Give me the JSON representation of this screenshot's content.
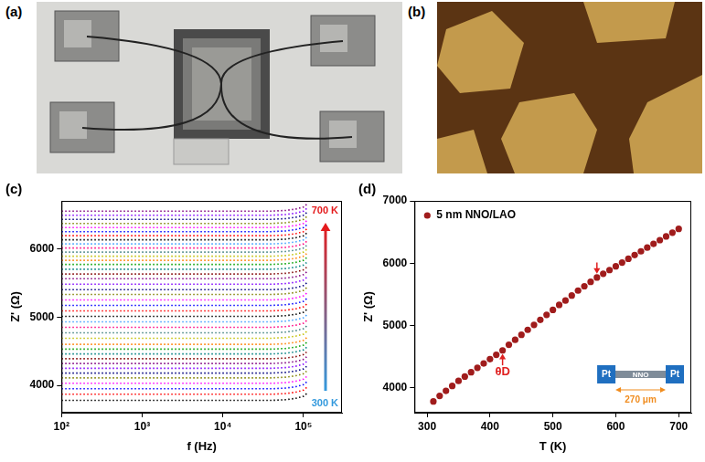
{
  "images": [
    {
      "panel": "(a)"
    },
    {
      "panel": "(b)"
    }
  ],
  "chart_data": [
    {
      "type": "line",
      "panel": "(c)",
      "xlabel": "f (Hz)",
      "ylabel": "Z' (Ω)",
      "log": "x",
      "grid": false,
      "line_style": "dotted",
      "x": [
        100,
        1000,
        10000,
        40000,
        60000,
        80000,
        100000,
        110000
      ],
      "xlim": [
        100,
        300000
      ],
      "xticks": [
        {
          "value": 100,
          "label": "10²"
        },
        {
          "value": 1000,
          "label": "10³"
        },
        {
          "value": 10000,
          "label": "10⁴"
        },
        {
          "value": 100000,
          "label": "10⁵"
        }
      ],
      "ylim": [
        3600,
        6700
      ],
      "yticks": [
        4000,
        5000,
        6000
      ],
      "annotations": [
        {
          "text": "700 K",
          "color": "#e41a1c"
        },
        {
          "text": "300 K",
          "color": "#3399dd"
        }
      ],
      "series": [
        {
          "color": "#000000",
          "values": [
            3780,
            3780,
            3780,
            3780,
            3790,
            3810,
            3840,
            3880
          ]
        },
        {
          "color": "#ff0000",
          "values": [
            3870,
            3870,
            3870,
            3870,
            3880,
            3900,
            3930,
            3970
          ]
        },
        {
          "color": "#0000ff",
          "values": [
            3950,
            3950,
            3950,
            3950,
            3960,
            3980,
            4010,
            4050
          ]
        },
        {
          "color": "#ff00ff",
          "values": [
            4030,
            4030,
            4030,
            4030,
            4040,
            4060,
            4090,
            4130
          ]
        },
        {
          "color": "#808000",
          "values": [
            4110,
            4110,
            4110,
            4110,
            4120,
            4140,
            4170,
            4210
          ]
        },
        {
          "color": "#000080",
          "values": [
            4180,
            4180,
            4180,
            4180,
            4190,
            4210,
            4240,
            4280
          ]
        },
        {
          "color": "#8000ff",
          "values": [
            4250,
            4250,
            4250,
            4250,
            4260,
            4280,
            4310,
            4350
          ]
        },
        {
          "color": "#800080",
          "values": [
            4320,
            4320,
            4320,
            4320,
            4330,
            4350,
            4380,
            4420
          ]
        },
        {
          "color": "#800000",
          "values": [
            4390,
            4390,
            4390,
            4390,
            4400,
            4420,
            4450,
            4490
          ]
        },
        {
          "color": "#008080",
          "values": [
            4460,
            4460,
            4460,
            4460,
            4470,
            4490,
            4520,
            4560
          ]
        },
        {
          "color": "#00a000",
          "values": [
            4530,
            4530,
            4530,
            4530,
            4540,
            4560,
            4590,
            4630
          ]
        },
        {
          "color": "#ff8000",
          "values": [
            4600,
            4600,
            4600,
            4600,
            4610,
            4630,
            4660,
            4700
          ]
        },
        {
          "color": "#c0c000",
          "values": [
            4690,
            4690,
            4690,
            4690,
            4700,
            4720,
            4750,
            4790
          ]
        },
        {
          "color": "#408080",
          "values": [
            4770,
            4770,
            4770,
            4770,
            4780,
            4800,
            4830,
            4870
          ]
        },
        {
          "color": "#ff0080",
          "values": [
            4850,
            4850,
            4850,
            4850,
            4860,
            4880,
            4910,
            4950
          ]
        },
        {
          "color": "#40a0ff",
          "values": [
            4930,
            4930,
            4930,
            4930,
            4940,
            4960,
            4990,
            5030
          ]
        },
        {
          "color": "#000000",
          "values": [
            5010,
            5010,
            5010,
            5010,
            5020,
            5040,
            5070,
            5110
          ]
        },
        {
          "color": "#ff0000",
          "values": [
            5090,
            5090,
            5090,
            5090,
            5100,
            5120,
            5150,
            5190
          ]
        },
        {
          "color": "#0000ff",
          "values": [
            5170,
            5170,
            5170,
            5170,
            5180,
            5200,
            5230,
            5270
          ]
        },
        {
          "color": "#ff00ff",
          "values": [
            5250,
            5250,
            5250,
            5250,
            5260,
            5280,
            5310,
            5350
          ]
        },
        {
          "color": "#808000",
          "values": [
            5330,
            5330,
            5330,
            5330,
            5340,
            5360,
            5390,
            5430
          ]
        },
        {
          "color": "#000080",
          "values": [
            5400,
            5400,
            5400,
            5400,
            5410,
            5430,
            5460,
            5500
          ]
        },
        {
          "color": "#8000ff",
          "values": [
            5480,
            5480,
            5480,
            5480,
            5490,
            5510,
            5540,
            5580
          ]
        },
        {
          "color": "#800080",
          "values": [
            5560,
            5560,
            5560,
            5560,
            5570,
            5590,
            5620,
            5660
          ]
        },
        {
          "color": "#800000",
          "values": [
            5630,
            5630,
            5630,
            5630,
            5640,
            5660,
            5690,
            5730
          ]
        },
        {
          "color": "#008080",
          "values": [
            5700,
            5700,
            5700,
            5700,
            5710,
            5730,
            5760,
            5800
          ]
        },
        {
          "color": "#00a000",
          "values": [
            5770,
            5770,
            5770,
            5770,
            5780,
            5800,
            5830,
            5870
          ]
        },
        {
          "color": "#ff8000",
          "values": [
            5830,
            5830,
            5830,
            5830,
            5840,
            5860,
            5890,
            5930
          ]
        },
        {
          "color": "#c0c000",
          "values": [
            5890,
            5890,
            5890,
            5890,
            5900,
            5920,
            5950,
            5990
          ]
        },
        {
          "color": "#408080",
          "values": [
            5950,
            5950,
            5950,
            5950,
            5960,
            5980,
            6010,
            6050
          ]
        },
        {
          "color": "#ff0080",
          "values": [
            6010,
            6010,
            6010,
            6010,
            6020,
            6040,
            6070,
            6110
          ]
        },
        {
          "color": "#40a0ff",
          "values": [
            6070,
            6070,
            6070,
            6070,
            6080,
            6100,
            6130,
            6170
          ]
        },
        {
          "color": "#000000",
          "values": [
            6130,
            6130,
            6130,
            6130,
            6140,
            6160,
            6190,
            6230
          ]
        },
        {
          "color": "#ff0000",
          "values": [
            6190,
            6190,
            6190,
            6190,
            6200,
            6220,
            6250,
            6290
          ]
        },
        {
          "color": "#0000ff",
          "values": [
            6250,
            6250,
            6250,
            6250,
            6260,
            6280,
            6310,
            6350
          ]
        },
        {
          "color": "#ff00ff",
          "values": [
            6310,
            6310,
            6310,
            6310,
            6320,
            6340,
            6370,
            6410
          ]
        },
        {
          "color": "#808000",
          "values": [
            6370,
            6370,
            6370,
            6370,
            6380,
            6400,
            6430,
            6470
          ]
        },
        {
          "color": "#000080",
          "values": [
            6430,
            6430,
            6430,
            6430,
            6440,
            6460,
            6490,
            6530
          ]
        },
        {
          "color": "#8000ff",
          "values": [
            6490,
            6490,
            6490,
            6490,
            6500,
            6520,
            6550,
            6590
          ]
        },
        {
          "color": "#800080",
          "values": [
            6550,
            6550,
            6550,
            6550,
            6560,
            6580,
            6610,
            6650
          ]
        }
      ]
    },
    {
      "type": "scatter",
      "panel": "(d)",
      "xlabel": "T (K)",
      "ylabel": "Z' (Ω)",
      "grid": false,
      "legend": "upper left",
      "x": [
        310,
        320,
        330,
        340,
        350,
        360,
        370,
        380,
        390,
        400,
        410,
        420,
        430,
        440,
        450,
        460,
        470,
        480,
        490,
        500,
        510,
        520,
        530,
        540,
        550,
        560,
        570,
        580,
        590,
        600,
        610,
        620,
        630,
        640,
        650,
        660,
        670,
        680,
        690,
        700
      ],
      "xlim": [
        280,
        720
      ],
      "xticks": [
        300,
        400,
        500,
        600,
        700
      ],
      "ylim": [
        3600,
        7000
      ],
      "yticks": [
        4000,
        5000,
        6000,
        7000
      ],
      "series": [
        {
          "name": "5 nm NNO/LAO",
          "color": "#a01c1c",
          "marker": "circle",
          "values": [
            3780,
            3870,
            3950,
            4030,
            4110,
            4180,
            4250,
            4320,
            4390,
            4460,
            4530,
            4600,
            4690,
            4770,
            4850,
            4930,
            5010,
            5090,
            5170,
            5250,
            5330,
            5400,
            5480,
            5560,
            5630,
            5700,
            5770,
            5830,
            5890,
            5950,
            6010,
            6070,
            6130,
            6190,
            6250,
            6310,
            6370,
            6430,
            6490,
            6550
          ]
        }
      ],
      "annotations": [
        {
          "text": "θD",
          "x": 420,
          "y": 4250,
          "color": "#e02020"
        }
      ],
      "arrows": [
        {
          "x": 420,
          "y_from": 4360,
          "y_to": 4545,
          "color": "#e02020"
        },
        {
          "x": 570,
          "y_from": 6010,
          "y_to": 5830,
          "color": "#e02020"
        }
      ],
      "inset": {
        "labels": [
          "Pt",
          "NNO",
          "Pt"
        ],
        "dimension": "270 μm"
      }
    }
  ]
}
